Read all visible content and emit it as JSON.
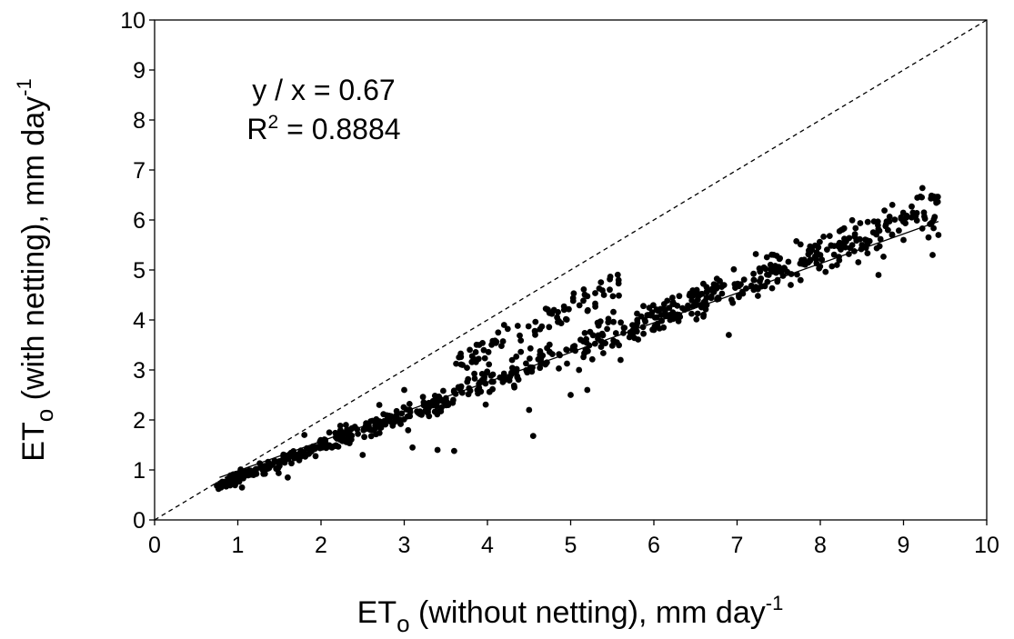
{
  "chart_data": {
    "type": "scatter",
    "title": "",
    "xlabel": {
      "main": "ET",
      "sub": "o",
      "rest": " (without netting), mm day",
      "sup": "-1"
    },
    "ylabel": {
      "main": "ET",
      "sub": "o",
      "rest": " (with netting), mm day",
      "sup": "-1"
    },
    "xlim": [
      0,
      10
    ],
    "ylim": [
      0,
      10
    ],
    "xticks": [
      "0",
      "1",
      "2",
      "3",
      "4",
      "5",
      "6",
      "7",
      "8",
      "9",
      "10"
    ],
    "yticks": [
      "0",
      "1",
      "2",
      "3",
      "4",
      "5",
      "6",
      "7",
      "8",
      "9",
      "10"
    ],
    "grid": false,
    "legend": "none",
    "annotations": {
      "line1": "y / x = 0.67",
      "r2_prefix": "R",
      "r2_sup": "2",
      "r2_rest": " = 0.8884"
    },
    "reference_line": {
      "style": "dashed",
      "x": [
        0,
        10
      ],
      "y": [
        0,
        10
      ]
    },
    "fit_line": {
      "style": "solid",
      "x": [
        0.78,
        9.42
      ],
      "y": [
        0.85,
        5.97
      ]
    },
    "point_cloud": {
      "count": 820,
      "x_range": [
        0.75,
        9.42
      ],
      "slope": 0.64,
      "intercept": 0.2,
      "upper_bound": "y = x",
      "min_point": [
        4.55,
        1.68
      ],
      "max_point": [
        9.42,
        5.7
      ]
    },
    "series": [
      {
        "points": [
          [
            0.75,
            0.68
          ],
          [
            0.85,
            0.7
          ],
          [
            0.95,
            0.8
          ],
          [
            1.05,
            0.65
          ],
          [
            1.0,
            0.9
          ],
          [
            1.3,
            1.0
          ],
          [
            1.5,
            1.1
          ],
          [
            1.6,
            0.85
          ],
          [
            1.8,
            1.7
          ],
          [
            2.1,
            1.75
          ],
          [
            2.3,
            1.9
          ],
          [
            2.5,
            1.3
          ],
          [
            2.7,
            2.3
          ],
          [
            3.0,
            2.6
          ],
          [
            3.1,
            1.45
          ],
          [
            3.4,
            1.4
          ],
          [
            3.6,
            1.38
          ],
          [
            3.7,
            3.1
          ],
          [
            3.9,
            3.5
          ],
          [
            4.2,
            3.9
          ],
          [
            4.5,
            2.2
          ],
          [
            4.55,
            1.68
          ],
          [
            4.8,
            4.2
          ],
          [
            5.0,
            2.5
          ],
          [
            5.1,
            3.0
          ],
          [
            5.2,
            2.6
          ],
          [
            5.4,
            4.5
          ],
          [
            5.6,
            3.2
          ],
          [
            5.8,
            4.0
          ],
          [
            6.0,
            3.8
          ],
          [
            6.5,
            4.5
          ],
          [
            6.9,
            3.7
          ],
          [
            7.2,
            4.8
          ],
          [
            7.5,
            5.0
          ],
          [
            7.9,
            5.4
          ],
          [
            8.0,
            5.3
          ],
          [
            8.2,
            5.1
          ],
          [
            8.5,
            5.5
          ],
          [
            8.7,
            4.9
          ],
          [
            9.0,
            5.6
          ],
          [
            9.3,
            5.65
          ],
          [
            9.35,
            5.3
          ],
          [
            9.42,
            5.7
          ]
        ]
      }
    ]
  }
}
